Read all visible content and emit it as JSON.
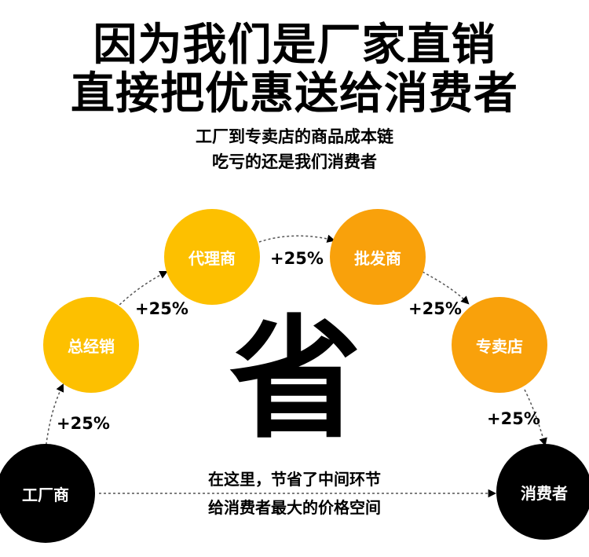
{
  "headline": {
    "line1": "因为我们是厂家直销",
    "line2": "直接把优惠送给消费者"
  },
  "subheadline": {
    "line1": "工厂到专卖店的商品成本链",
    "line2": "吃亏的还是我们消费者"
  },
  "chain": [
    {
      "label": "工厂商",
      "color": "#000000"
    },
    {
      "label": "总经销",
      "color": "#fdc000"
    },
    {
      "label": "代理商",
      "color": "#fdc000"
    },
    {
      "label": "批发商",
      "color": "#f9a10b"
    },
    {
      "label": "专卖店",
      "color": "#f9a10b"
    },
    {
      "label": "消费者",
      "color": "#000000"
    }
  ],
  "markups": [
    "+25%",
    "+25%",
    "+25%",
    "+25%",
    "+25%"
  ],
  "center_char": "省",
  "savings_note": {
    "line1": "在这里，节省了中间环节",
    "line2": "给消费者最大的价格空间"
  }
}
